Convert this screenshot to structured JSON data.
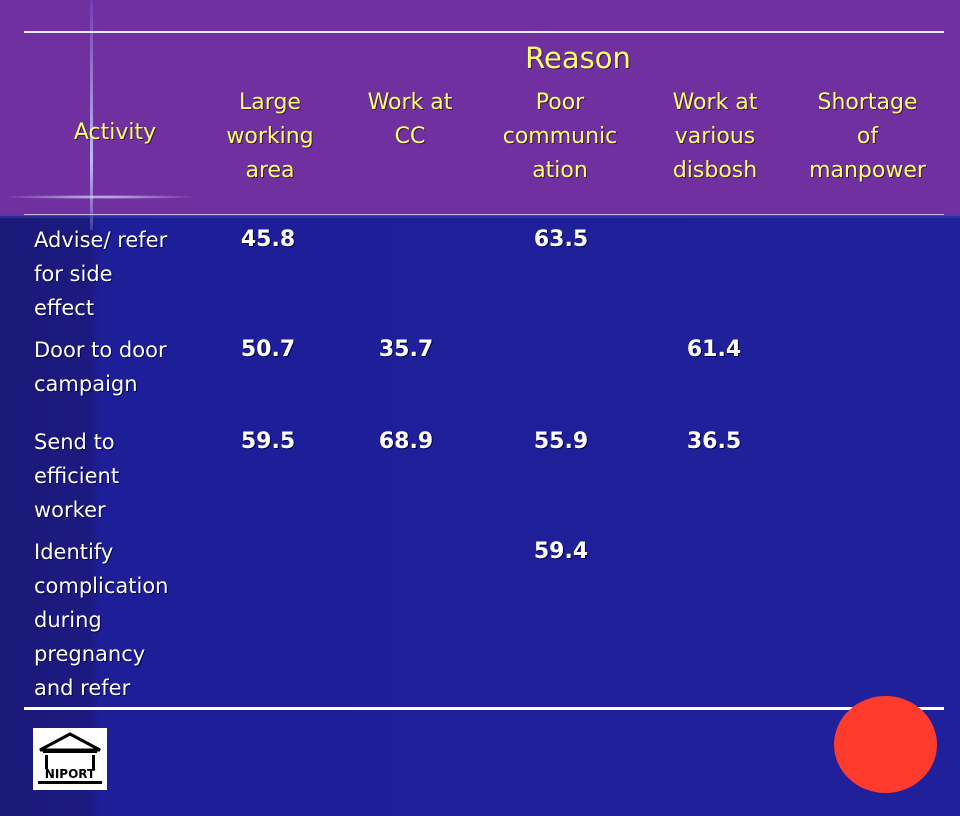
{
  "table": {
    "group_header": "Reason",
    "headers": {
      "activity": "Activity",
      "columns": [
        [
          "Large",
          "working",
          "area"
        ],
        [
          "Work at",
          "CC"
        ],
        [
          "Poor",
          "communic",
          "ation"
        ],
        [
          "Work at",
          "various",
          "disbosh"
        ],
        [
          "Shortage",
          "of",
          "manpower"
        ]
      ]
    },
    "rows": [
      {
        "label": [
          "Advise/ refer",
          "for side",
          "effect"
        ],
        "values": [
          "45.8",
          "",
          "63.5",
          "",
          ""
        ]
      },
      {
        "label": [
          "Door to door",
          "campaign"
        ],
        "values": [
          "50.7",
          "35.7",
          "",
          "61.4",
          ""
        ]
      },
      {
        "label": [
          "Send to",
          "efficient",
          "worker"
        ],
        "values": [
          "59.5",
          "68.9",
          "55.9",
          "36.5",
          ""
        ]
      },
      {
        "label": [
          "Identify",
          "complication",
          "during",
          "pregnancy",
          "and refer"
        ],
        "values": [
          "",
          "",
          "59.4",
          "",
          ""
        ]
      }
    ]
  },
  "logo": {
    "text": "NIPORT",
    "icon": "building-icon"
  },
  "colors": {
    "header_band": "#7030a0",
    "header_text": "#ffff66",
    "body_background": "#20209a",
    "body_text": "#ffffff",
    "red_dot": "#ff3b2e"
  }
}
